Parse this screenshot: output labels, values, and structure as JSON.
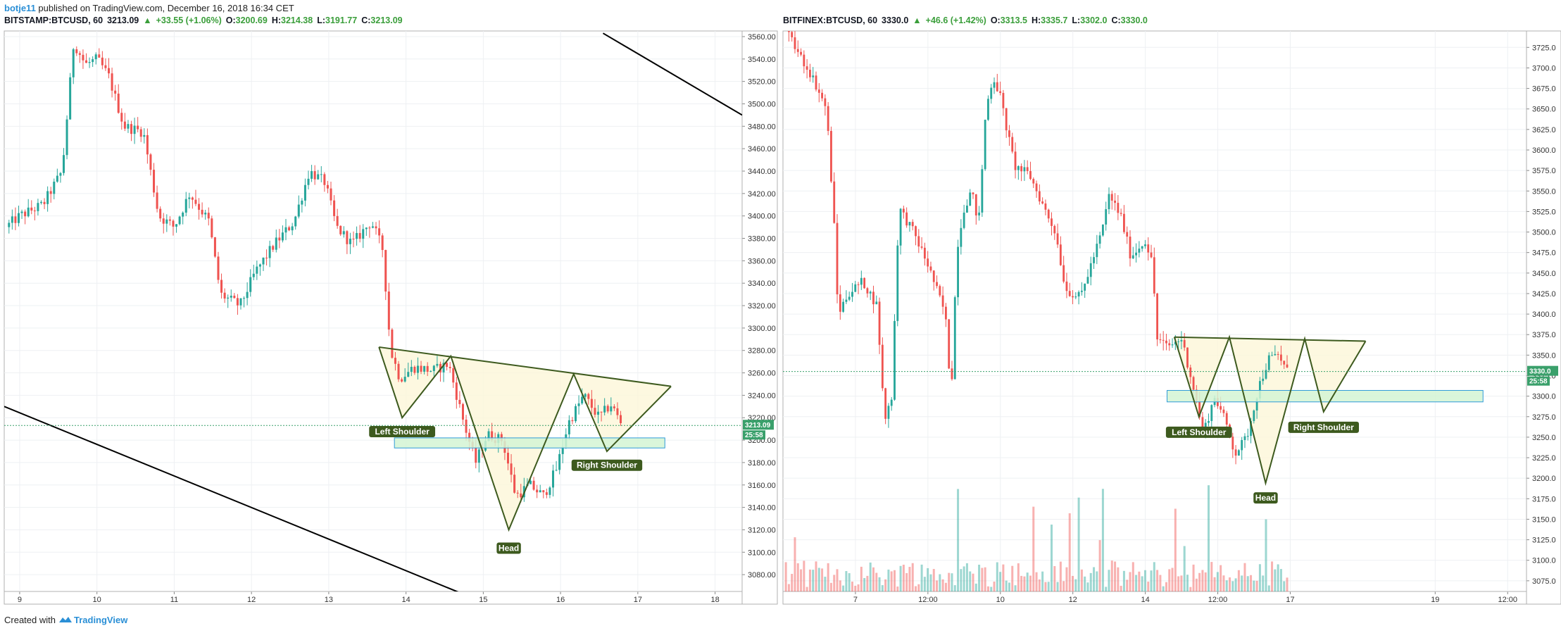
{
  "header": {
    "author": "botje11",
    "published": "published on TradingView.com, December 16, 2018 16:34 CET"
  },
  "footer": {
    "created": "Created with",
    "brand": "TradingView"
  },
  "left": {
    "symbol": "BITSTAMP:BTCUSD, 60",
    "price": "3213.09",
    "change": "+33.55 (+1.06%)",
    "o_label": "O:",
    "o": "3200.69",
    "h_label": "H:",
    "h": "3214.38",
    "l_label": "L:",
    "l": "3191.77",
    "c_label": "C:",
    "c": "3213.09",
    "price_tag": "3213.09",
    "time_tag": "25:58",
    "annotations": [
      "Left Shoulder",
      "Head",
      "Right Shoulder"
    ]
  },
  "right": {
    "symbol": "BITFINEX:BTCUSD, 60",
    "price": "3330.0",
    "change": "+46.6 (+1.42%)",
    "o_label": "O:",
    "o": "3313.5",
    "h_label": "H:",
    "h": "3335.7",
    "l_label": "L:",
    "l": "3302.0",
    "c_label": "C:",
    "c": "3330.0",
    "price_tag": "3330.0",
    "time_tag": "25:58",
    "annotations": [
      "Left Shoulder",
      "Head",
      "Right Shoulder"
    ]
  },
  "colors": {
    "up": "#26a69a",
    "down": "#ef5350",
    "pattern": "#3d5a1e",
    "pattern_fill": "#fdf6d8",
    "neckline_zone": "#d4f5d4",
    "price_line": "#3aa06b"
  },
  "chart_data": [
    {
      "type": "candlestick",
      "title": "BITSTAMP:BTCUSD, 60",
      "x_ticks": [
        "9",
        "10",
        "11",
        "12",
        "13",
        "14",
        "15",
        "16",
        "17",
        "18"
      ],
      "y_ticks": [
        3080,
        3100,
        3120,
        3140,
        3160,
        3180,
        3200,
        3220,
        3240,
        3260,
        3280,
        3300,
        3320,
        3340,
        3360,
        3380,
        3400,
        3420,
        3440,
        3460,
        3480,
        3500,
        3520,
        3540,
        3560
      ],
      "ylim": [
        3065,
        3565
      ],
      "x_range_days": [
        8.8,
        18.35
      ],
      "candles_start_day": 8.82,
      "candles_per_day": 24,
      "close_path": [
        {
          "d": 8.82,
          "p": 3390
        },
        {
          "d": 9.0,
          "p": 3400
        },
        {
          "d": 9.3,
          "p": 3410
        },
        {
          "d": 9.55,
          "p": 3440
        },
        {
          "d": 9.7,
          "p": 3555
        },
        {
          "d": 9.85,
          "p": 3535
        },
        {
          "d": 10.0,
          "p": 3540
        },
        {
          "d": 10.15,
          "p": 3525
        },
        {
          "d": 10.35,
          "p": 3480
        },
        {
          "d": 10.6,
          "p": 3475
        },
        {
          "d": 10.8,
          "p": 3400
        },
        {
          "d": 11.0,
          "p": 3390
        },
        {
          "d": 11.2,
          "p": 3420
        },
        {
          "d": 11.45,
          "p": 3395
        },
        {
          "d": 11.6,
          "p": 3330
        },
        {
          "d": 11.85,
          "p": 3320
        },
        {
          "d": 12.05,
          "p": 3350
        },
        {
          "d": 12.3,
          "p": 3375
        },
        {
          "d": 12.55,
          "p": 3395
        },
        {
          "d": 12.75,
          "p": 3440
        },
        {
          "d": 12.95,
          "p": 3430
        },
        {
          "d": 13.1,
          "p": 3390
        },
        {
          "d": 13.3,
          "p": 3375
        },
        {
          "d": 13.55,
          "p": 3395
        },
        {
          "d": 13.7,
          "p": 3370
        },
        {
          "d": 13.8,
          "p": 3280
        },
        {
          "d": 13.92,
          "p": 3255
        },
        {
          "d": 14.1,
          "p": 3265
        },
        {
          "d": 14.35,
          "p": 3262
        },
        {
          "d": 14.55,
          "p": 3268
        },
        {
          "d": 14.75,
          "p": 3215
        },
        {
          "d": 14.9,
          "p": 3180
        },
        {
          "d": 15.05,
          "p": 3205
        },
        {
          "d": 15.25,
          "p": 3200
        },
        {
          "d": 15.42,
          "p": 3150
        },
        {
          "d": 15.6,
          "p": 3160
        },
        {
          "d": 15.78,
          "p": 3150
        },
        {
          "d": 15.95,
          "p": 3175
        },
        {
          "d": 16.1,
          "p": 3215
        },
        {
          "d": 16.3,
          "p": 3240
        },
        {
          "d": 16.5,
          "p": 3220
        },
        {
          "d": 16.65,
          "p": 3232
        },
        {
          "d": 16.8,
          "p": 3213
        }
      ],
      "current_price": 3213.09,
      "pattern": {
        "name": "inverse head and shoulders",
        "points": [
          {
            "d": 13.65,
            "p": 3283
          },
          {
            "d": 13.95,
            "p": 3220
          },
          {
            "d": 14.58,
            "p": 3275
          },
          {
            "d": 15.33,
            "p": 3120
          },
          {
            "d": 16.17,
            "p": 3259
          },
          {
            "d": 16.6,
            "p": 3190
          },
          {
            "d": 17.43,
            "p": 3248
          }
        ],
        "labels": [
          {
            "text": "Left Shoulder",
            "d": 13.95,
            "p": 3212
          },
          {
            "text": "Head",
            "d": 15.33,
            "p": 3108
          },
          {
            "text": "Right Shoulder",
            "d": 16.6,
            "p": 3182
          }
        ],
        "zone": {
          "d0": 13.85,
          "d1": 17.35,
          "p0": 3193,
          "p1": 3202
        }
      },
      "trendlines": [
        {
          "d0": 8.8,
          "p0": 3230,
          "d1": 15.9,
          "p1": 3030
        },
        {
          "d0": 16.55,
          "p0": 3563,
          "d1": 18.35,
          "p1": 3490
        }
      ]
    },
    {
      "type": "candlestick",
      "title": "BITFINEX:BTCUSD, 60",
      "x_ticks": [
        {
          "t": 7.0,
          "label": "7"
        },
        {
          "t": 7.5,
          "label": "12:00"
        },
        {
          "t": 8.0,
          "label": "10"
        },
        {
          "t": 8.5,
          "label": "12"
        },
        {
          "t": 9.0,
          "label": "14"
        },
        {
          "t": 9.5,
          "label": "12:00"
        },
        {
          "t": 10.0,
          "label": "17"
        },
        {
          "t": 11.0,
          "label": "19"
        },
        {
          "t": 11.5,
          "label": "12:00"
        }
      ],
      "y_ticks": [
        3075,
        3100,
        3125,
        3150,
        3175,
        3200,
        3225,
        3250,
        3275,
        3300,
        3325,
        3350,
        3375,
        3400,
        3425,
        3450,
        3475,
        3500,
        3525,
        3550,
        3575,
        3600,
        3625,
        3650,
        3675,
        3700,
        3725
      ],
      "ylim": [
        3062,
        3745
      ],
      "x_range": [
        6.5,
        11.63
      ],
      "close_path": [
        {
          "t": 6.52,
          "p": 3745
        },
        {
          "t": 6.6,
          "p": 3720
        },
        {
          "t": 6.7,
          "p": 3690
        },
        {
          "t": 6.8,
          "p": 3650
        },
        {
          "t": 6.85,
          "p": 3520
        },
        {
          "t": 6.88,
          "p": 3400
        },
        {
          "t": 6.95,
          "p": 3425
        },
        {
          "t": 7.05,
          "p": 3440
        },
        {
          "t": 7.15,
          "p": 3410
        },
        {
          "t": 7.2,
          "p": 3270
        },
        {
          "t": 7.25,
          "p": 3300
        },
        {
          "t": 7.3,
          "p": 3530
        },
        {
          "t": 7.4,
          "p": 3500
        },
        {
          "t": 7.5,
          "p": 3460
        },
        {
          "t": 7.58,
          "p": 3420
        },
        {
          "t": 7.62,
          "p": 3400
        },
        {
          "t": 7.66,
          "p": 3300
        },
        {
          "t": 7.7,
          "p": 3480
        },
        {
          "t": 7.75,
          "p": 3530
        },
        {
          "t": 7.8,
          "p": 3550
        },
        {
          "t": 7.85,
          "p": 3510
        },
        {
          "t": 7.9,
          "p": 3650
        },
        {
          "t": 7.95,
          "p": 3690
        },
        {
          "t": 8.0,
          "p": 3665
        },
        {
          "t": 8.05,
          "p": 3620
        },
        {
          "t": 8.1,
          "p": 3580
        },
        {
          "t": 8.2,
          "p": 3570
        },
        {
          "t": 8.3,
          "p": 3530
        },
        {
          "t": 8.38,
          "p": 3500
        },
        {
          "t": 8.45,
          "p": 3430
        },
        {
          "t": 8.55,
          "p": 3420
        },
        {
          "t": 8.7,
          "p": 3500
        },
        {
          "t": 8.75,
          "p": 3545
        },
        {
          "t": 8.83,
          "p": 3520
        },
        {
          "t": 8.9,
          "p": 3470
        },
        {
          "t": 9.0,
          "p": 3490
        },
        {
          "t": 9.05,
          "p": 3460
        },
        {
          "t": 9.08,
          "p": 3370
        },
        {
          "t": 9.15,
          "p": 3360
        },
        {
          "t": 9.25,
          "p": 3370
        },
        {
          "t": 9.32,
          "p": 3320
        },
        {
          "t": 9.4,
          "p": 3255
        },
        {
          "t": 9.48,
          "p": 3300
        },
        {
          "t": 9.55,
          "p": 3270
        },
        {
          "t": 9.62,
          "p": 3230
        },
        {
          "t": 9.7,
          "p": 3250
        },
        {
          "t": 9.78,
          "p": 3310
        },
        {
          "t": 9.85,
          "p": 3345
        },
        {
          "t": 9.92,
          "p": 3350
        },
        {
          "t": 9.98,
          "p": 3330
        }
      ],
      "current_price": 3330.0,
      "pattern": {
        "name": "inverse head and shoulders",
        "points": [
          {
            "t": 9.2,
            "p": 3372
          },
          {
            "t": 9.37,
            "p": 3275
          },
          {
            "t": 9.58,
            "p": 3372
          },
          {
            "t": 9.83,
            "p": 3194
          },
          {
            "t": 10.1,
            "p": 3370
          },
          {
            "t": 10.23,
            "p": 3281
          },
          {
            "t": 10.52,
            "p": 3367
          }
        ],
        "labels": [
          {
            "text": "Left Shoulder",
            "t": 9.37,
            "p": 3262
          },
          {
            "text": "Head",
            "t": 9.83,
            "p": 3182
          },
          {
            "text": "Right Shoulder",
            "t": 10.23,
            "p": 3268
          }
        ],
        "zone": {
          "t0": 9.15,
          "t1": 11.33,
          "p0": 3293,
          "p1": 3307
        }
      },
      "volume": {
        "scale_max": 700,
        "baseline_price": 3062
      }
    }
  ]
}
